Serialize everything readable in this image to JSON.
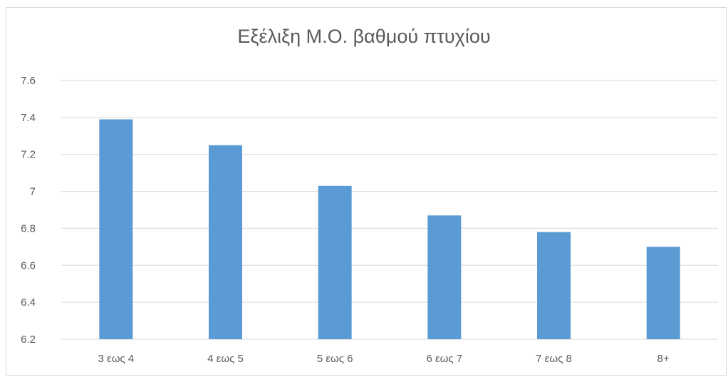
{
  "chart_data": {
    "type": "bar",
    "title": "Εξέλιξη Μ.Ο. βαθμού πτυχίου",
    "xlabel": "",
    "ylabel": "",
    "categories": [
      "3 εως 4",
      "4 εως 5",
      "5 εως 6",
      "6 εως 7",
      "7 εως 8",
      "8+"
    ],
    "values": [
      7.39,
      7.25,
      7.03,
      6.87,
      6.78,
      6.7
    ],
    "ylim": [
      6.2,
      7.6
    ],
    "yticks": [
      "6.2",
      "6.4",
      "6.6",
      "6.8",
      "7",
      "7.2",
      "7.4",
      "7.6"
    ],
    "grid": true,
    "legend": "none",
    "bar_color": "#5b9bd5",
    "grid_color": "#d9d9d9",
    "text_color": "#595959"
  }
}
